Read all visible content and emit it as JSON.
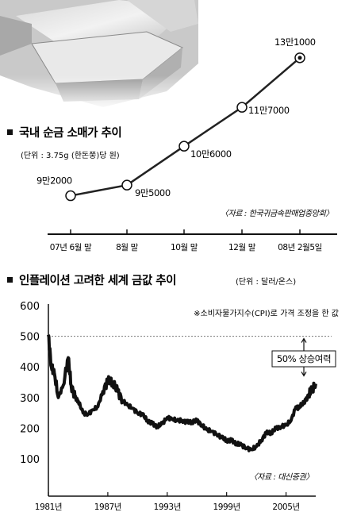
{
  "chart_data": [
    {
      "type": "line",
      "title": "국내 순금 소매가 추이",
      "subtitle": "(단위 : 3.75g (한돈쭝)당 원)",
      "source": "〈자료 : 한국귀금속판매업중앙회〉",
      "categories": [
        "07년 6월 말",
        "8월 말",
        "10월 말",
        "12월 말",
        "08년 2월5일"
      ],
      "values": [
        92000,
        95000,
        106000,
        117000,
        131000
      ],
      "data_labels": [
        "9만2000",
        "9만5000",
        "10만6000",
        "11만7000",
        "13만1000"
      ],
      "ylim": [
        80000,
        135000
      ]
    },
    {
      "type": "line",
      "title": "인플레이션 고려한 세계 금값 추이",
      "subtitle": "(단위 : 달러/온스)",
      "annotation_note": "※소비자물가지수(CPI)로 가격 조정을 한 값",
      "callout": "50% 상승여력",
      "source": "〈자료 : 대신증권〉",
      "xticks": [
        1981,
        1987,
        1993,
        1999,
        2005
      ],
      "xtick_labels": [
        "1981년",
        "1987년",
        "1993년",
        "1999년",
        "2005년"
      ],
      "yticks": [
        100,
        200,
        300,
        400,
        500,
        600
      ],
      "ylim": [
        50,
        600
      ],
      "xlim": [
        1981,
        2008
      ],
      "reference_line": 500,
      "x": [
        1981,
        1981.3,
        1981.6,
        1982,
        1982.5,
        1983,
        1983.3,
        1983.7,
        1984,
        1984.5,
        1985,
        1985.5,
        1986,
        1986.5,
        1987,
        1987.5,
        1988,
        1988.5,
        1989,
        1989.5,
        1990,
        1990.5,
        1991,
        1991.5,
        1992,
        1992.5,
        1993,
        1993.5,
        1994,
        1994.5,
        1995,
        1995.5,
        1996,
        1996.5,
        1997,
        1997.5,
        1998,
        1998.5,
        1999,
        1999.5,
        2000,
        2000.5,
        2001,
        2001.5,
        2002,
        2002.5,
        2003,
        2003.5,
        2004,
        2004.5,
        2005,
        2005.5,
        2006,
        2006.3,
        2006.6,
        2007,
        2007.3,
        2007.6,
        2008
      ],
      "y": [
        505,
        400,
        380,
        300,
        340,
        430,
        340,
        300,
        290,
        250,
        245,
        260,
        270,
        320,
        355,
        350,
        320,
        290,
        275,
        265,
        250,
        245,
        225,
        215,
        205,
        215,
        235,
        230,
        225,
        225,
        220,
        220,
        225,
        210,
        195,
        190,
        180,
        170,
        160,
        160,
        150,
        145,
        135,
        130,
        140,
        160,
        185,
        185,
        200,
        205,
        210,
        225,
        270,
        265,
        280,
        290,
        310,
        325,
        345
      ]
    }
  ]
}
